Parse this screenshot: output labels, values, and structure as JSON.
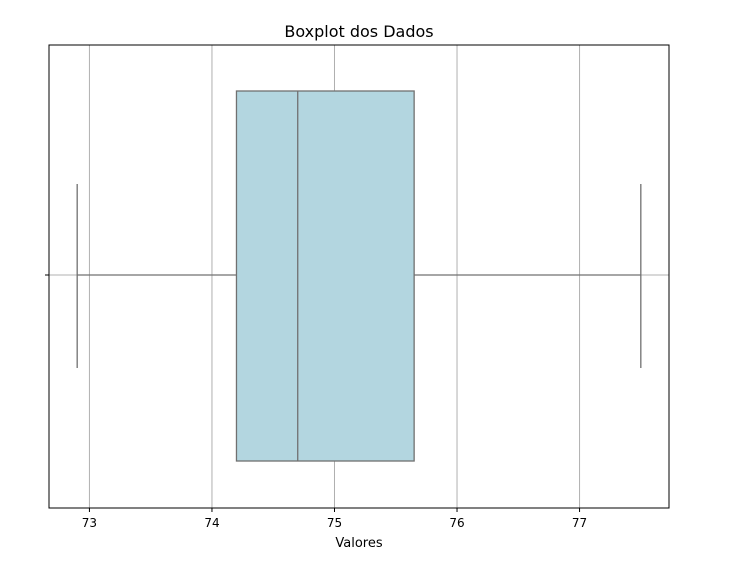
{
  "chart_data": {
    "type": "boxplot",
    "orientation": "horizontal",
    "title": "Boxplot dos Dados",
    "xlabel": "Valores",
    "ylabel": "",
    "xlim": [
      72.67,
      77.73
    ],
    "xticks": [
      73,
      74,
      75,
      76,
      77
    ],
    "xtick_labels": [
      "73",
      "74",
      "75",
      "76",
      "77"
    ],
    "grid": true,
    "box": {
      "whisker_low": 72.9,
      "q1": 74.2,
      "median": 74.7,
      "q3": 75.65,
      "whisker_high": 77.5
    },
    "colors": {
      "box_fill": "#b3d6e0",
      "line": "#707070",
      "grid": "#b0b0b0"
    }
  }
}
